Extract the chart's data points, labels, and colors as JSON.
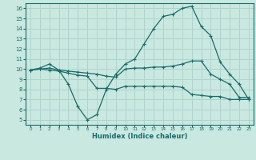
{
  "xlabel": "Humidex (Indice chaleur)",
  "bg_color": "#c8e8e0",
  "grid_color": "#b0d4cc",
  "line_color": "#1a6b6b",
  "xlim": [
    -0.5,
    23.5
  ],
  "ylim": [
    4.5,
    16.5
  ],
  "xticks": [
    0,
    1,
    2,
    3,
    4,
    5,
    6,
    7,
    8,
    9,
    10,
    11,
    12,
    13,
    14,
    15,
    16,
    17,
    18,
    19,
    20,
    21,
    22,
    23
  ],
  "yticks": [
    5,
    6,
    7,
    8,
    9,
    10,
    11,
    12,
    13,
    14,
    15,
    16
  ],
  "series": [
    {
      "x": [
        0,
        1,
        2,
        3,
        4,
        5,
        6,
        7,
        8,
        9,
        10,
        11,
        12,
        13,
        14,
        15,
        16,
        17,
        18,
        19,
        20,
        21,
        22,
        23
      ],
      "y": [
        9.9,
        10.1,
        10.5,
        9.9,
        8.5,
        6.3,
        5.0,
        5.5,
        8.0,
        9.5,
        10.5,
        11.0,
        12.5,
        14.0,
        15.2,
        15.4,
        16.0,
        16.2,
        14.2,
        13.3,
        10.7,
        9.5,
        8.5,
        7.0
      ]
    },
    {
      "x": [
        0,
        1,
        2,
        3,
        4,
        5,
        6,
        7,
        8,
        9,
        10,
        11,
        12,
        13,
        14,
        15,
        16,
        17,
        18,
        19,
        20,
        21,
        22,
        23
      ],
      "y": [
        9.9,
        10.0,
        10.1,
        9.9,
        9.8,
        9.7,
        9.6,
        9.5,
        9.3,
        9.2,
        10.0,
        10.1,
        10.1,
        10.2,
        10.2,
        10.3,
        10.5,
        10.8,
        10.8,
        9.5,
        9.0,
        8.5,
        7.2,
        7.2
      ]
    },
    {
      "x": [
        0,
        1,
        2,
        3,
        4,
        5,
        6,
        7,
        8,
        9,
        10,
        11,
        12,
        13,
        14,
        15,
        16,
        17,
        18,
        19,
        20,
        21,
        22,
        23
      ],
      "y": [
        9.9,
        10.0,
        9.9,
        9.8,
        9.6,
        9.4,
        9.3,
        8.1,
        8.1,
        8.0,
        8.3,
        8.3,
        8.3,
        8.3,
        8.3,
        8.3,
        8.2,
        7.5,
        7.4,
        7.3,
        7.3,
        7.0,
        7.0,
        7.0
      ]
    }
  ]
}
